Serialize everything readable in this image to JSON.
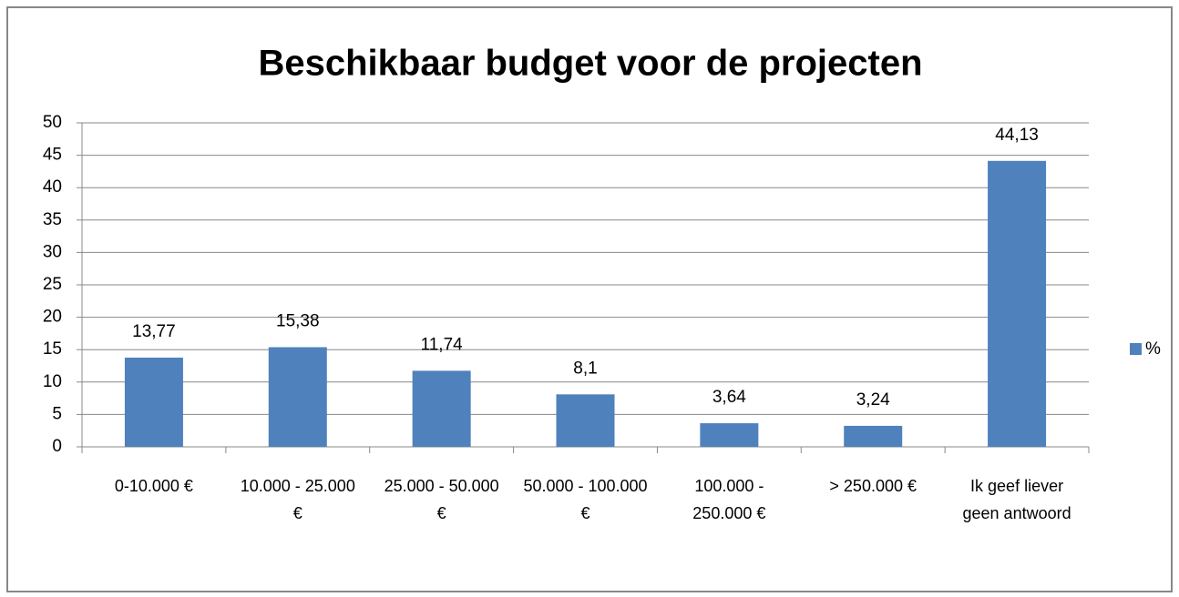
{
  "chart_data": {
    "type": "bar",
    "title": "Beschikbaar budget voor de projecten",
    "categories": [
      "0-10.000 €",
      "10.000 - 25.000 €",
      "25.000 - 50.000 €",
      "50.000 - 100.000 €",
      "100.000 - 250.000 €",
      "> 250.000 €",
      "Ik geef liever geen antwoord"
    ],
    "series": [
      {
        "name": "%",
        "color": "#4f81bd",
        "values": [
          13.77,
          15.38,
          11.74,
          8.1,
          3.64,
          3.24,
          44.13
        ],
        "value_labels": [
          "13,77",
          "15,38",
          "11,74",
          "8,1",
          "3,64",
          "3,24",
          "44,13"
        ]
      }
    ],
    "ylim": [
      0,
      50
    ],
    "yticks": [
      0,
      5,
      10,
      15,
      20,
      25,
      30,
      35,
      40,
      45,
      50
    ],
    "grid": true,
    "legend": "right"
  }
}
